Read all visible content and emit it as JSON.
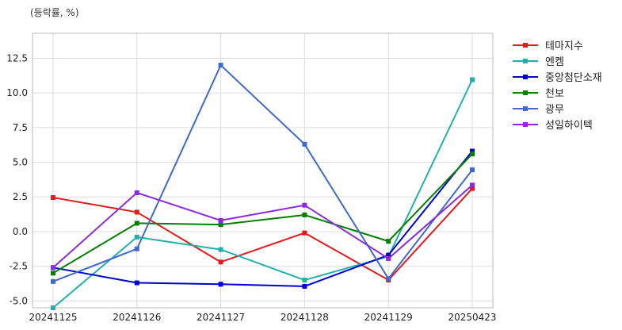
{
  "chart_data": {
    "type": "line",
    "unit_label": "(등락률, %)",
    "categories": [
      "20241125",
      "20241126",
      "20241127",
      "20241128",
      "20241129",
      "20250423"
    ],
    "ylim": [
      -5.5,
      14.3
    ],
    "yticks": [
      -5.0,
      -2.5,
      0.0,
      2.5,
      5.0,
      7.5,
      10.0,
      12.5
    ],
    "ytick_labels": [
      "-5.0",
      "-2.5",
      "0.0",
      "2.5",
      "5.0",
      "7.5",
      "10.0",
      "12.5"
    ],
    "grid": true,
    "legend_position": "right",
    "series": [
      {
        "name": "테마지수",
        "color": "#e41a1c",
        "values": [
          2.45,
          1.4,
          -2.2,
          -0.1,
          -3.5,
          3.1
        ]
      },
      {
        "name": "엔켐",
        "color": "#20b2aa",
        "values": [
          -5.5,
          -0.4,
          -1.3,
          -3.5,
          -1.8,
          10.95
        ]
      },
      {
        "name": "중앙첨단소재",
        "color": "#0000cd",
        "values": [
          -2.6,
          -3.7,
          -3.8,
          -3.95,
          -1.7,
          5.8
        ]
      },
      {
        "name": "천보",
        "color": "#008000",
        "values": [
          -3.0,
          0.6,
          0.5,
          1.2,
          -0.7,
          5.6
        ]
      },
      {
        "name": "광무",
        "color": "#4169cd",
        "values": [
          -3.6,
          -1.25,
          12.0,
          6.3,
          -3.4,
          4.45
        ]
      },
      {
        "name": "성일하이텍",
        "color": "#8a2be2",
        "values": [
          -2.6,
          2.8,
          0.8,
          1.9,
          -1.95,
          3.35
        ]
      }
    ]
  }
}
